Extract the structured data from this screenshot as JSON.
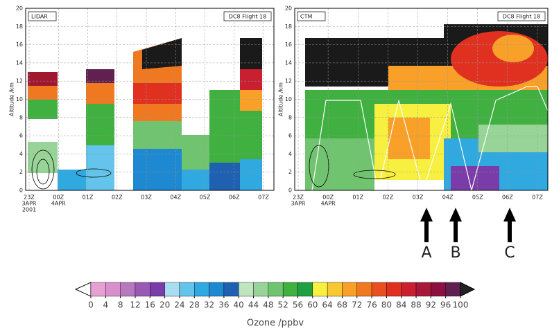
{
  "panels": [
    {
      "label": "LIDAR",
      "flight": "DC8 Flight 18",
      "ylabel": "Altitude /km",
      "yticks": [
        0,
        2,
        4,
        6,
        8,
        10,
        12,
        14,
        16,
        18,
        20
      ],
      "xticks": [
        [
          "23Z",
          "3APR",
          "2001"
        ],
        [
          "00Z",
          "4APR"
        ],
        [
          "01Z"
        ],
        [
          "02Z"
        ],
        [
          "03Z"
        ],
        [
          "04Z"
        ],
        [
          "05Z"
        ],
        [
          "06Z"
        ],
        [
          "07Z"
        ]
      ]
    },
    {
      "label": "CTM",
      "flight": "DC8 Flight 18",
      "ylabel": "Altitude /km",
      "yticks": [
        0,
        2,
        4,
        6,
        8,
        10,
        12,
        14,
        16,
        18,
        20
      ],
      "xticks": [
        [
          "23Z",
          "3APR"
        ],
        [
          "00Z",
          "4APR"
        ],
        [
          "01Z"
        ],
        [
          "02Z"
        ],
        [
          "03Z"
        ],
        [
          "04Z"
        ],
        [
          "05Z"
        ],
        [
          "06Z"
        ],
        [
          "07Z"
        ]
      ]
    }
  ],
  "arrows": [
    "A",
    "B",
    "C"
  ],
  "colorbar": {
    "label": "Ozone /ppbv",
    "ticks": [
      0,
      4,
      8,
      12,
      16,
      20,
      24,
      28,
      32,
      36,
      40,
      44,
      48,
      52,
      56,
      60,
      64,
      68,
      72,
      76,
      80,
      84,
      88,
      92,
      96,
      100
    ],
    "colors": [
      "#e6a0d2",
      "#d890cc",
      "#b878c0",
      "#9a5ab4",
      "#7a3ca8",
      "#a8dcf0",
      "#64c4ec",
      "#30a8e0",
      "#1e88d0",
      "#2060b0",
      "#c0e4c0",
      "#98d498",
      "#70c470",
      "#40b040",
      "#20a040",
      "#f8f040",
      "#f8c830",
      "#f8a028",
      "#f07820",
      "#e85020",
      "#e03020",
      "#c82030",
      "#a81838",
      "#8c1040",
      "#602050"
    ]
  }
}
